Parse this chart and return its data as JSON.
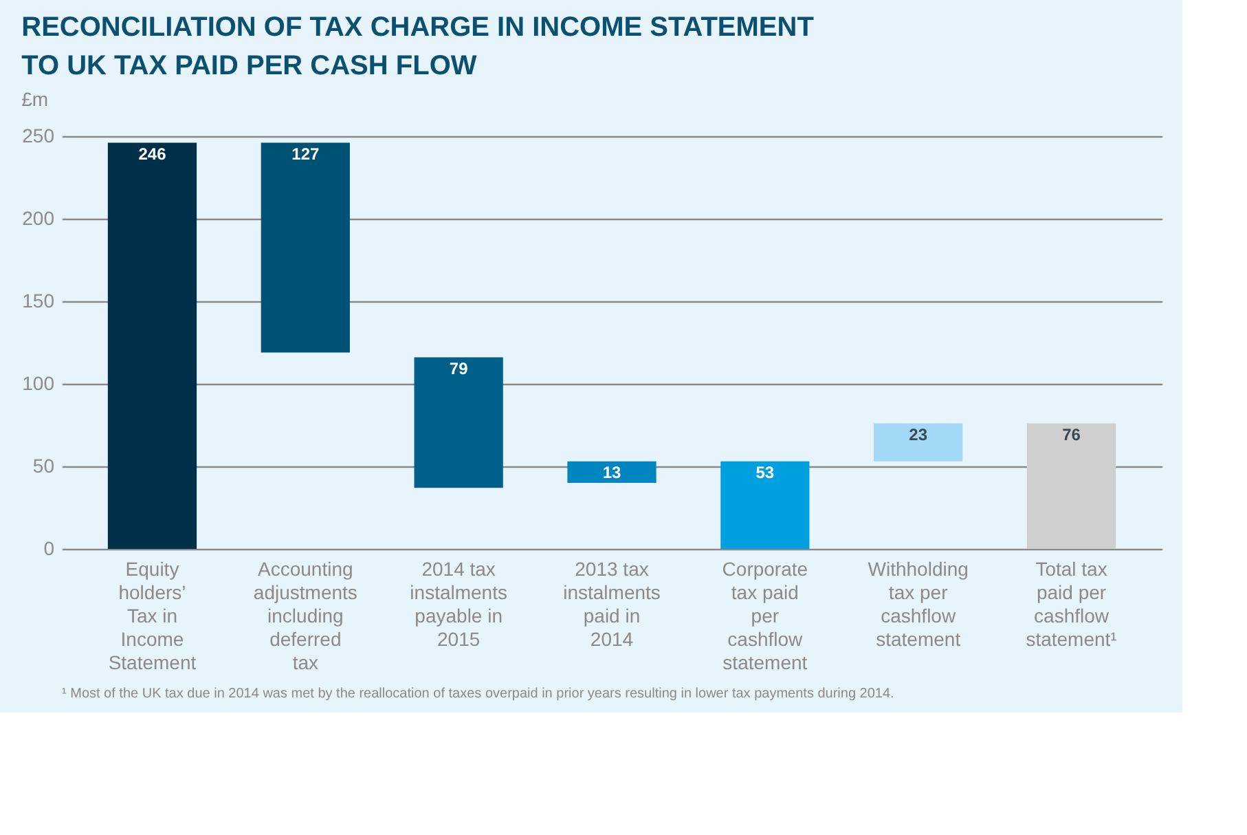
{
  "chart_data": {
    "type": "bar",
    "title": "RECONCILIATION OF TAX CHARGE IN INCOME STATEMENT TO UK TAX PAID PER CASH FLOW",
    "ylabel": "£m",
    "categories": [
      "Equity holders’ Tax in Income Statement",
      "Accounting adjustments including deferred tax",
      "2014 tax instalments payable in 2015",
      "2013 tax instalments paid in 2014",
      "Corporate tax paid per cashflow statement",
      "Withholding tax per cashflow statement",
      "Total tax paid per cashflow statement¹"
    ],
    "values": [
      246,
      127,
      79,
      13,
      53,
      23,
      76
    ],
    "base": [
      0,
      119,
      37,
      40,
      0,
      53,
      0
    ],
    "colors": [
      "#003049",
      "#005275",
      "#00608a",
      "#0085c0",
      "#00a0e0",
      "#a3d9f7",
      "#cfcfcf"
    ],
    "ylim": [
      0,
      250
    ],
    "yticks": [
      0,
      50,
      100,
      150,
      200,
      250
    ],
    "grid": "y",
    "data_labels": true,
    "annotations": [
      "¹ Most of the UK tax due in 2014 was met by the reallocation of taxes overpaid in prior years resulting in lower tax payments during 2014."
    ]
  }
}
